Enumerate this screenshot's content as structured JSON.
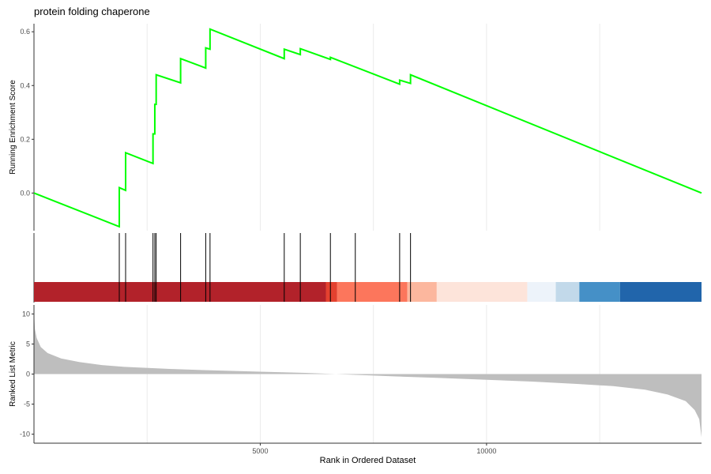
{
  "chart_data": {
    "type": "line",
    "title": "protein folding chaperone",
    "xlabel": "Rank in Ordered Dataset",
    "x_range": [
      0,
      14750
    ],
    "x_ticks": [
      5000,
      10000
    ],
    "x_tick_labels": [
      "5000",
      "10000"
    ],
    "grid": true,
    "line_color": "#00ff00",
    "enrichment": {
      "ylabel": "Running Enrichment Score",
      "ylim": [
        -0.14,
        0.63
      ],
      "y_ticks": [
        0.0,
        0.2,
        0.4,
        0.6
      ],
      "y_tick_labels": [
        "0.0",
        "0.2",
        "0.4",
        "0.6"
      ],
      "points": [
        [
          0,
          0.0
        ],
        [
          1885,
          -0.125
        ],
        [
          1885,
          0.02
        ],
        [
          2025,
          0.01
        ],
        [
          2025,
          0.15
        ],
        [
          2630,
          0.11
        ],
        [
          2630,
          0.22
        ],
        [
          2670,
          0.22
        ],
        [
          2670,
          0.33
        ],
        [
          2700,
          0.33
        ],
        [
          2700,
          0.44
        ],
        [
          3240,
          0.41
        ],
        [
          3240,
          0.5
        ],
        [
          3795,
          0.465
        ],
        [
          3795,
          0.54
        ],
        [
          3890,
          0.535
        ],
        [
          3890,
          0.61
        ],
        [
          5530,
          0.5
        ],
        [
          5530,
          0.535
        ],
        [
          5885,
          0.515
        ],
        [
          5885,
          0.537
        ],
        [
          6550,
          0.497
        ],
        [
          6550,
          0.505
        ],
        [
          8080,
          0.405
        ],
        [
          8080,
          0.42
        ],
        [
          8320,
          0.408
        ],
        [
          8320,
          0.44
        ],
        [
          14750,
          0.0
        ]
      ]
    },
    "hits": [
      1885,
      2025,
      2630,
      2670,
      2700,
      3240,
      3795,
      3890,
      5530,
      5885,
      6550,
      7100,
      8080,
      8320
    ],
    "color_bar": [
      {
        "from": 0,
        "to": 6450,
        "color": "#b2222a"
      },
      {
        "from": 6450,
        "to": 6700,
        "color": "#e4412f"
      },
      {
        "from": 6700,
        "to": 8250,
        "color": "#fc765c"
      },
      {
        "from": 8250,
        "to": 8900,
        "color": "#fcb79e"
      },
      {
        "from": 8900,
        "to": 10900,
        "color": "#fde4da"
      },
      {
        "from": 10900,
        "to": 11530,
        "color": "#edf3fa"
      },
      {
        "from": 11530,
        "to": 12050,
        "color": "#c2d9ea"
      },
      {
        "from": 12050,
        "to": 12950,
        "color": "#4590c7"
      },
      {
        "from": 12950,
        "to": 14750,
        "color": "#2165ab"
      }
    ],
    "ranked_metric": {
      "ylabel": "Ranked List Metric",
      "ylim": [
        -11.5,
        11.5
      ],
      "y_ticks": [
        10,
        5,
        0,
        -5,
        -10
      ],
      "y_tick_labels": [
        "10",
        "5",
        "0",
        "-5",
        "-10"
      ],
      "fill_color": "#bebebe",
      "points": [
        [
          0,
          10.5
        ],
        [
          20,
          7.5
        ],
        [
          60,
          6.0
        ],
        [
          150,
          4.5
        ],
        [
          300,
          3.5
        ],
        [
          600,
          2.6
        ],
        [
          1000,
          2.0
        ],
        [
          1500,
          1.5
        ],
        [
          2000,
          1.2
        ],
        [
          3000,
          0.85
        ],
        [
          4000,
          0.6
        ],
        [
          5000,
          0.4
        ],
        [
          6000,
          0.2
        ],
        [
          6500,
          0.05
        ],
        [
          7000,
          -0.1
        ],
        [
          8000,
          -0.4
        ],
        [
          9000,
          -0.65
        ],
        [
          10000,
          -0.95
        ],
        [
          11000,
          -1.25
        ],
        [
          12000,
          -1.65
        ],
        [
          12800,
          -2.0
        ],
        [
          13500,
          -2.6
        ],
        [
          14000,
          -3.4
        ],
        [
          14400,
          -4.5
        ],
        [
          14600,
          -6.0
        ],
        [
          14700,
          -7.5
        ],
        [
          14750,
          -10.5
        ]
      ]
    }
  }
}
